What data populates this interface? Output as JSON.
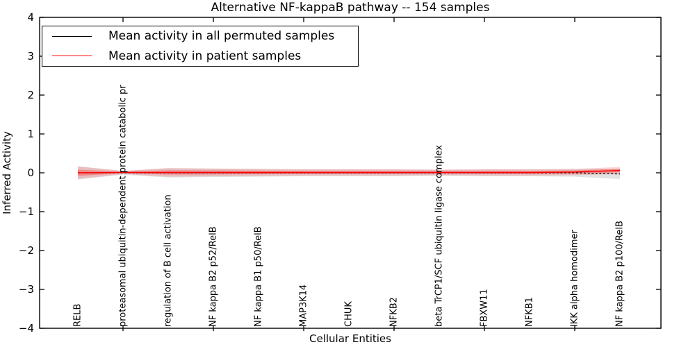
{
  "title": "Alternative NF-kappaB pathway -- 154 samples",
  "axes": {
    "xlabel": "Cellular Entities",
    "ylabel": "Inferred Activity",
    "ytick_labels": [
      "4",
      "3",
      "2",
      "1",
      "0",
      "−1",
      "−2",
      "−3",
      "−4"
    ]
  },
  "legend": {
    "items": [
      {
        "label": "Mean activity in all permuted samples",
        "color": "#000000"
      },
      {
        "label": "Mean activity in patient samples",
        "color": "#ff0000"
      }
    ]
  },
  "chart_data": {
    "type": "line",
    "title": "Alternative NF-kappaB pathway -- 154 samples",
    "xlabel": "Cellular Entities",
    "ylabel": "Inferred Activity",
    "ylim": [
      -4,
      4
    ],
    "yticks": [
      4,
      3,
      2,
      1,
      0,
      -1,
      -2,
      -3,
      -4
    ],
    "grid": false,
    "legend_position": "upper left",
    "categories": [
      "RELB",
      "proteasomal ubiquitin-dependent protein catabolic pr",
      "regulation of B cell activation",
      "NF kappa B2 p52/RelB",
      "NF kappa B1 p50/RelB",
      "MAP3K14",
      "CHUK",
      "NFKB2",
      "beta TrCP1/SCF ubiquitin ligase complex",
      "FBXW11",
      "NFKB1",
      "IKK alpha homodimer",
      "NF kappa B2 p100/RelB"
    ],
    "series": [
      {
        "name": "Mean activity in all permuted samples",
        "color": "#000000",
        "line_style": "dashed",
        "band_fill": "rgba(0,0,0,0.11)",
        "values": [
          0.0,
          0.0,
          0.0,
          0.0,
          0.0,
          0.0,
          0.0,
          0.0,
          0.0,
          0.0,
          0.0,
          0.0,
          -0.03
        ],
        "band_halfwidth": [
          0.17,
          0.05,
          0.12,
          0.11,
          0.1,
          0.09,
          0.09,
          0.09,
          0.08,
          0.09,
          0.09,
          0.1,
          0.13
        ]
      },
      {
        "name": "Mean activity in patient samples",
        "color": "#ff0000",
        "line_style": "solid",
        "band_fill": "rgba(255,0,0,0.16)",
        "inner_band_fill": "rgba(255,0,0,0.28)",
        "values": [
          0.0,
          0.01,
          0.01,
          0.01,
          0.01,
          0.01,
          0.01,
          0.01,
          0.01,
          0.01,
          0.01,
          0.02,
          0.06
        ],
        "band_halfwidth": [
          0.16,
          0.04,
          0.11,
          0.1,
          0.09,
          0.08,
          0.08,
          0.08,
          0.07,
          0.08,
          0.08,
          0.08,
          0.09
        ]
      }
    ]
  }
}
